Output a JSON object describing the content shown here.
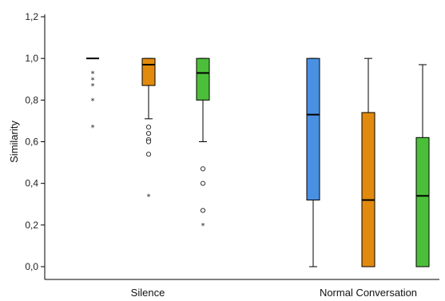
{
  "chart_data": {
    "type": "boxplot",
    "title": "",
    "xlabel": "",
    "ylabel": "Similarity",
    "ylim": [
      0.0,
      1.2
    ],
    "yticks": [
      "0,0",
      "0,2",
      "0,4",
      "0,6",
      "0,8",
      "1,0",
      "1,2"
    ],
    "ytick_values": [
      0.0,
      0.2,
      0.4,
      0.6,
      0.8,
      1.0,
      1.2
    ],
    "grid": false,
    "categories": [
      "Silence",
      "Normal Conversation"
    ],
    "colors": [
      "#4a90e2",
      "#e28a0e",
      "#4cbf3a"
    ],
    "groups": [
      {
        "category": "Silence",
        "boxes": [
          {
            "color_index": 0,
            "min": 1.0,
            "q1": 1.0,
            "median": 1.0,
            "q3": 1.0,
            "max": 1.0,
            "outliers": [],
            "extremes": [
              0.93,
              0.9,
              0.87,
              0.8,
              0.67
            ]
          },
          {
            "color_index": 1,
            "min": 0.71,
            "q1": 0.87,
            "median": 0.97,
            "q3": 1.0,
            "max": 1.0,
            "outliers": [
              0.67,
              0.64,
              0.61,
              0.6,
              0.54
            ],
            "extremes": [
              0.34
            ]
          },
          {
            "color_index": 2,
            "min": 0.6,
            "q1": 0.8,
            "median": 0.93,
            "q3": 1.0,
            "max": 1.0,
            "outliers": [
              0.47,
              0.4,
              0.27
            ],
            "extremes": [
              0.2
            ]
          }
        ]
      },
      {
        "category": "Normal Conversation",
        "boxes": [
          {
            "color_index": 0,
            "min": 0.0,
            "q1": 0.32,
            "median": 0.73,
            "q3": 1.0,
            "max": 1.0,
            "outliers": [],
            "extremes": []
          },
          {
            "color_index": 1,
            "min": 0.0,
            "q1": 0.0,
            "median": 0.32,
            "q3": 0.74,
            "max": 1.0,
            "outliers": [],
            "extremes": []
          },
          {
            "color_index": 2,
            "min": 0.0,
            "q1": 0.0,
            "median": 0.34,
            "q3": 0.62,
            "max": 0.97,
            "outliers": [],
            "extremes": []
          }
        ]
      }
    ]
  }
}
